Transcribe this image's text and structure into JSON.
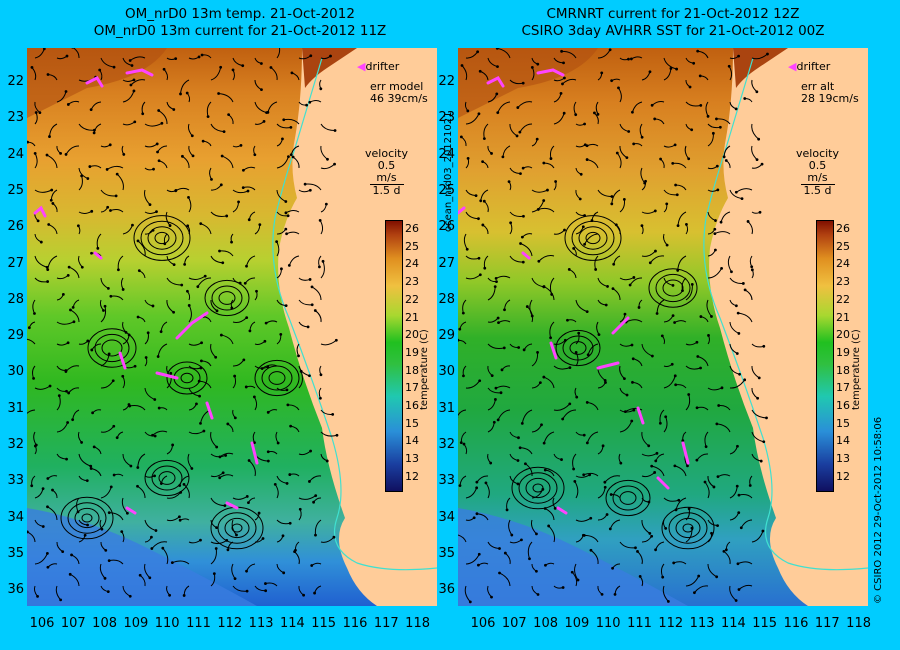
{
  "left": {
    "title_line1": "OM_nrD0 13m temp. 21-Oct-2012",
    "title_line2": "OM_nrD0 13m current for 21-Oct-2012 11Z",
    "err_label": "err model",
    "err_value": "46 39cm/s"
  },
  "right": {
    "title_line1": "CMRNRT current for 21-Oct-2012 12Z",
    "title_line2": "CSIRO 3day AVHRR SST for 21-Oct-2012 00Z",
    "err_label": "err alt",
    "err_value": "28 19cm/s"
  },
  "legend": {
    "drifter": "drifter",
    "velocity_label": "velocity",
    "velocity_scale": "0.5 m/s",
    "time_scale": "1.5 d"
  },
  "latitudes": [
    "22",
    "23",
    "24",
    "25",
    "26",
    "27",
    "28",
    "29",
    "30",
    "31",
    "32",
    "33",
    "34",
    "35",
    "36"
  ],
  "longitudes": [
    "106",
    "107",
    "108",
    "109",
    "110",
    "111",
    "112",
    "113",
    "114",
    "115",
    "116",
    "117",
    "118"
  ],
  "colorbar": {
    "ticks": [
      "26",
      "25",
      "24",
      "23",
      "22",
      "21",
      "20",
      "19",
      "18",
      "17",
      "16",
      "15",
      "14",
      "13",
      "12"
    ],
    "unit": "temperature (C)"
  },
  "side_text_left": "ocean_nrd03_20121021",
  "side_text_right": "© CSIRO 2012   29-Oct-2012 10:58:06",
  "colors": {
    "background": "#00ccff",
    "land": "#ffcc99",
    "drifter": "#ff44ff",
    "coast": "#40e0d0"
  }
}
